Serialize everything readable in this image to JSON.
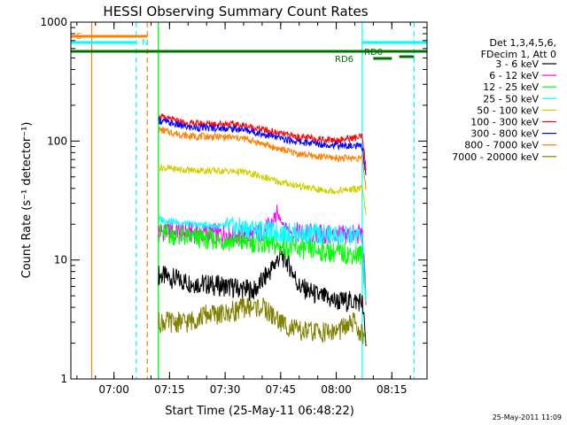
{
  "chart_data": {
    "type": "line",
    "title": "HESSI Observing Summary Count Rates",
    "xlabel": "Start Time (25-May-11 06:48:22)",
    "ylabel": "Count Rate (s⁻¹ detector⁻¹)",
    "y_scale": "log",
    "ylim": [
      1,
      1000
    ],
    "xlim": [
      "06:48:22",
      "08:24:30"
    ],
    "x_ticks": [
      "07:00",
      "07:15",
      "07:30",
      "07:45",
      "08:00",
      "08:15"
    ],
    "y_ticks": [
      "1",
      "10",
      "100",
      "1000"
    ],
    "grid": false,
    "legend_position": "right",
    "legend_header": [
      "Det 1,3,4,5,6,",
      "FDecim 1, Att 0"
    ],
    "series": [
      {
        "name": "3 - 6 keV",
        "color": "#000000",
        "x": [
          "07:12",
          "07:20",
          "07:30",
          "07:38",
          "07:42",
          "07:45",
          "07:47",
          "07:50",
          "07:55",
          "08:00",
          "08:07",
          "08:08"
        ],
        "y": [
          7.5,
          6.5,
          6.0,
          5.5,
          8.0,
          11.0,
          9.5,
          6.0,
          5.0,
          4.5,
          4.5,
          2.0
        ]
      },
      {
        "name": "6 - 12 keV",
        "color": "#ff00ff",
        "x": [
          "07:12",
          "07:20",
          "07:30",
          "07:38",
          "07:42",
          "07:44",
          "07:46",
          "07:48",
          "07:55",
          "08:00",
          "08:07",
          "08:08"
        ],
        "y": [
          17.5,
          17.0,
          16.5,
          16.0,
          19.0,
          24.0,
          20.0,
          17.0,
          16.5,
          16.0,
          16.5,
          5.0
        ]
      },
      {
        "name": "12 - 25 keV",
        "color": "#00ff00",
        "x": [
          "07:12",
          "07:20",
          "07:30",
          "07:38",
          "07:45",
          "07:55",
          "08:00",
          "08:07",
          "08:08"
        ],
        "y": [
          17.0,
          15.5,
          14.5,
          14.0,
          13.0,
          12.0,
          11.5,
          11.0,
          5.0
        ]
      },
      {
        "name": "25 - 50 keV",
        "color": "#00ffff",
        "x": [
          "07:12",
          "07:20",
          "07:30",
          "07:38",
          "07:45",
          "07:55",
          "08:00",
          "08:07",
          "08:08"
        ],
        "y": [
          22.0,
          20.0,
          19.0,
          18.0,
          17.0,
          16.5,
          16.0,
          16.0,
          4.0
        ]
      },
      {
        "name": "50 - 100 keV",
        "color": "#d0d000",
        "x": [
          "07:12",
          "07:20",
          "07:30",
          "07:35",
          "07:40",
          "07:45",
          "07:50",
          "07:55",
          "08:00",
          "08:07",
          "08:08"
        ],
        "y": [
          60,
          57,
          56,
          55,
          50,
          45,
          42,
          39,
          38,
          40,
          25
        ]
      },
      {
        "name": "100 - 300 keV",
        "color": "#ff0000",
        "x": [
          "07:12",
          "07:20",
          "07:30",
          "07:35",
          "07:40",
          "07:45",
          "07:50",
          "07:55",
          "08:00",
          "08:07",
          "08:08"
        ],
        "y": [
          160,
          140,
          140,
          135,
          125,
          115,
          108,
          104,
          102,
          108,
          60
        ]
      },
      {
        "name": "300 - 800 keV",
        "color": "#0000ff",
        "x": [
          "07:12",
          "07:20",
          "07:30",
          "07:35",
          "07:40",
          "07:45",
          "07:50",
          "07:55",
          "08:00",
          "08:07",
          "08:08"
        ],
        "y": [
          150,
          130,
          128,
          125,
          115,
          105,
          98,
          95,
          92,
          90,
          50
        ]
      },
      {
        "name": "800 - 7000 keV",
        "color": "#ff8000",
        "x": [
          "07:12",
          "07:20",
          "07:30",
          "07:35",
          "07:40",
          "07:45",
          "07:50",
          "07:55",
          "08:00",
          "08:07",
          "08:08"
        ],
        "y": [
          125,
          110,
          108,
          105,
          95,
          85,
          78,
          74,
          72,
          72,
          40
        ]
      },
      {
        "name": "7000 - 20000 keV",
        "color": "#808000",
        "x": [
          "07:12",
          "07:20",
          "07:25",
          "07:30",
          "07:35",
          "07:40",
          "07:45",
          "07:50",
          "07:55",
          "08:00",
          "08:05",
          "08:08"
        ],
        "y": [
          3.0,
          3.0,
          3.5,
          3.5,
          4.0,
          4.0,
          3.0,
          2.5,
          2.5,
          2.5,
          3.0,
          2.0
        ]
      }
    ],
    "flags": [
      {
        "label": "S",
        "color": "#ff8000",
        "x_start": "06:48:22",
        "x_end": "07:09"
      },
      {
        "label": "N",
        "color": "#00ffff",
        "x_start": "06:48:22",
        "x_end": "07:06"
      },
      {
        "label": "",
        "color": "#00ffff",
        "x_start": "08:07",
        "x_end": "08:24:30"
      },
      {
        "label": "",
        "color": "#007000",
        "x_start": "06:48:22",
        "x_end": "08:24:30"
      },
      {
        "label": "RD0",
        "color": "#007000",
        "x_start": "08:17",
        "x_end": "08:21"
      },
      {
        "label": "RD6",
        "color": "#007000",
        "x_start": "08:10",
        "x_end": "08:15"
      }
    ],
    "vertical_markers": [
      {
        "x": "06:54",
        "color": "#ff8000",
        "style": "solid"
      },
      {
        "x": "07:06",
        "color": "#00ffff",
        "style": "dashed"
      },
      {
        "x": "07:09",
        "color": "#ff8000",
        "style": "dashed"
      },
      {
        "x": "07:12",
        "color": "#00ffff",
        "style": "solid"
      },
      {
        "x": "07:12",
        "color": "#00ff00",
        "style": "solid"
      },
      {
        "x": "08:07",
        "color": "#00ffff",
        "style": "solid"
      },
      {
        "x": "08:21",
        "color": "#00ffff",
        "style": "dashed"
      }
    ],
    "timestamp": "25-May-2011 11:09"
  }
}
